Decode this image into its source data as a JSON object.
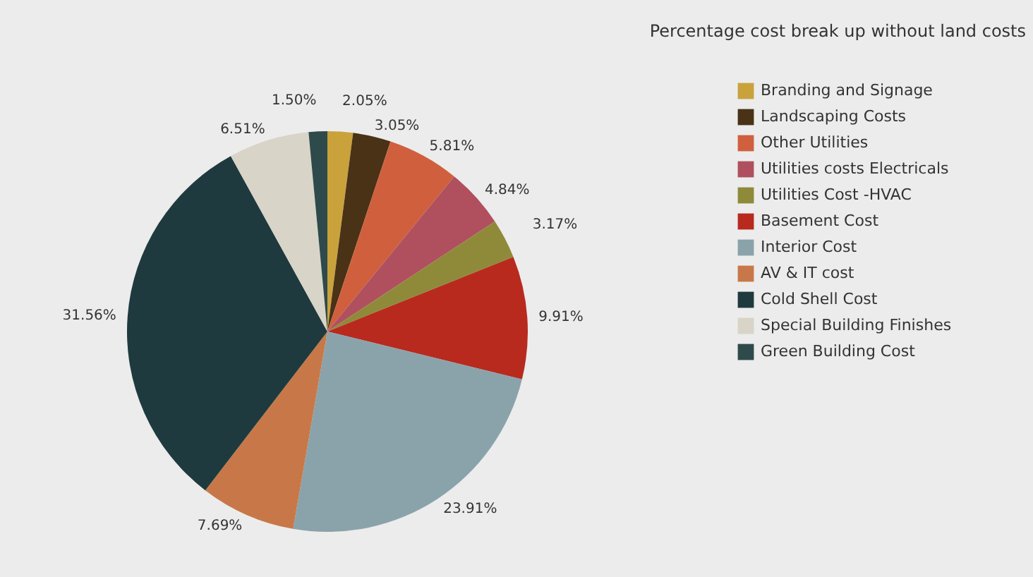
{
  "chart_data": {
    "type": "pie",
    "title": "Percentage cost break up without land costs",
    "categories": [
      "Branding and Signage",
      "Landscaping Costs",
      "Other Utilities",
      "Utilities costs Electricals",
      "Utilities Cost -HVAC",
      "Basement Cost",
      "Interior Cost",
      "AV & IT cost",
      "Cold Shell Cost",
      "Special Building Finishes",
      "Green Building Cost"
    ],
    "values": [
      2.05,
      3.05,
      5.81,
      4.84,
      3.17,
      9.91,
      23.91,
      7.69,
      31.56,
      6.51,
      1.5
    ],
    "value_labels": [
      "2.05%",
      "3.05%",
      "5.81%",
      "4.84%",
      "3.17%",
      "9.91%",
      "23.91%",
      "7.69%",
      "31.56%",
      "6.51%",
      "1.50%"
    ],
    "colors": [
      "#c9a23c",
      "#4a3216",
      "#d0603d",
      "#b0505e",
      "#8f8a3a",
      "#b82a1e",
      "#8aa3aa",
      "#c87848",
      "#1f3a3e",
      "#d8d4c8",
      "#2f4a4a"
    ],
    "legend": "right"
  }
}
